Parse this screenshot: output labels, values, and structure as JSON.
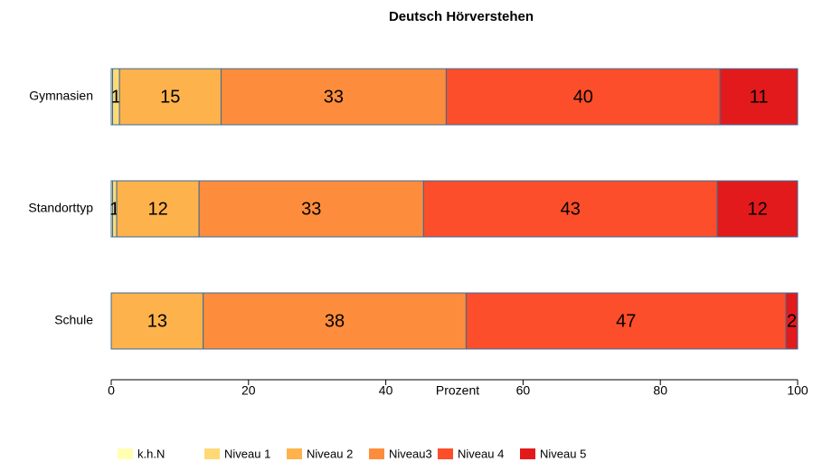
{
  "chart_data": {
    "type": "stacked_barh",
    "title": "Deutsch Hörverstehen",
    "xlabel": "Prozent",
    "categories": [
      "Gymnasien",
      "Standorttyp",
      "Schule"
    ],
    "series": [
      {
        "name": "k.h.N",
        "color": "#ffffb2",
        "values": [
          0.2,
          0.2,
          0
        ],
        "value_labels": [
          null,
          null,
          null
        ]
      },
      {
        "name": "Niveau 1",
        "color": "#fed976",
        "values": [
          1.0,
          0.6,
          0
        ],
        "value_labels": [
          "1",
          "1",
          null
        ]
      },
      {
        "name": "Niveau 2",
        "color": "#feb24c",
        "values": [
          14.8,
          12.0,
          13.4
        ],
        "value_labels": [
          "15",
          "12",
          "13"
        ]
      },
      {
        "name": "Niveau3",
        "color": "#fd8d3c",
        "values": [
          32.8,
          32.7,
          38.3
        ],
        "value_labels": [
          "33",
          "33",
          "38"
        ]
      },
      {
        "name": "Niveau 4",
        "color": "#fc4e2a",
        "values": [
          39.9,
          42.8,
          46.6
        ],
        "value_labels": [
          "40",
          "43",
          "47"
        ]
      },
      {
        "name": "Niveau 5",
        "color": "#e31a1c",
        "values": [
          11.3,
          11.7,
          1.7
        ],
        "value_labels": [
          "11",
          "12",
          "2"
        ]
      }
    ],
    "xlim": [
      0,
      100
    ],
    "xticks": [
      0,
      20,
      40,
      60,
      80,
      100
    ],
    "edge_color": "#3b6a96"
  }
}
